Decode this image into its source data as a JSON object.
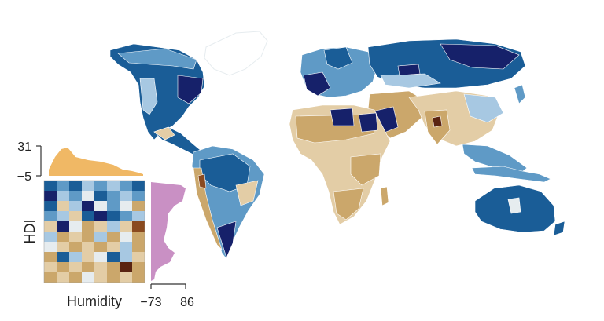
{
  "map": {
    "colors": {
      "blue_dark": "#16216a",
      "blue_mid": "#1a5d97",
      "blue_light": "#5f9ac6",
      "blue_pale": "#a7c8e2",
      "neutral": "#e6ecef",
      "tan_light": "#e3cda6",
      "tan": "#cba76b",
      "brown": "#8a4a1f",
      "brown_dark": "#5a2412"
    }
  },
  "legend": {
    "top_hist": {
      "max_label": "31",
      "min_label": "−5",
      "color": "#f0b865"
    },
    "right_hist": {
      "min_label": "−73",
      "max_label": "86",
      "color": "#c990c4"
    },
    "x_axis_label": "Humidity",
    "y_axis_label": "HDI",
    "grid_colors": [
      [
        "#1a5d97",
        "#5f9ac6",
        "#1a5d97",
        "#a7c8e2",
        "#5f9ac6",
        "#a7c8e2",
        "#5f9ac6",
        "#1a5d97"
      ],
      [
        "#16216a",
        "#a7c8e2",
        "#5f9ac6",
        "#e6ecef",
        "#1a5d97",
        "#5f9ac6",
        "#a7c8e2",
        "#5f9ac6"
      ],
      [
        "#1a5d97",
        "#e3cda6",
        "#a7c8e2",
        "#16216a",
        "#e6ecef",
        "#5f9ac6",
        "#e6ecef",
        "#cba76b"
      ],
      [
        "#5f9ac6",
        "#a7c8e2",
        "#e3cda6",
        "#1a5d97",
        "#16216a",
        "#1a5d97",
        "#5f9ac6",
        "#a7c8e2"
      ],
      [
        "#e3cda6",
        "#16216a",
        "#e6ecef",
        "#cba76b",
        "#e3cda6",
        "#a7c8e2",
        "#e3cda6",
        "#8a4a1f"
      ],
      [
        "#a7c8e2",
        "#cba76b",
        "#e3cda6",
        "#cba76b",
        "#a7c8e2",
        "#cba76b",
        "#e6ecef",
        "#cba76b"
      ],
      [
        "#e6ecef",
        "#e3cda6",
        "#cba76b",
        "#e3cda6",
        "#cba76b",
        "#e3cda6",
        "#a7c8e2",
        "#cba76b"
      ],
      [
        "#cba76b",
        "#1a5d97",
        "#a7c8e2",
        "#e3cda6",
        "#e6ecef",
        "#1a5d97",
        "#a7c8e2",
        "#e3cda6"
      ],
      [
        "#e3cda6",
        "#cba76b",
        "#e3cda6",
        "#cba76b",
        "#e3cda6",
        "#cba76b",
        "#5a2412",
        "#cba76b"
      ],
      [
        "#cba76b",
        "#e3cda6",
        "#cba76b",
        "#e6ecef",
        "#e3cda6",
        "#cba76b",
        "#e3cda6",
        "#cba76b"
      ]
    ]
  }
}
